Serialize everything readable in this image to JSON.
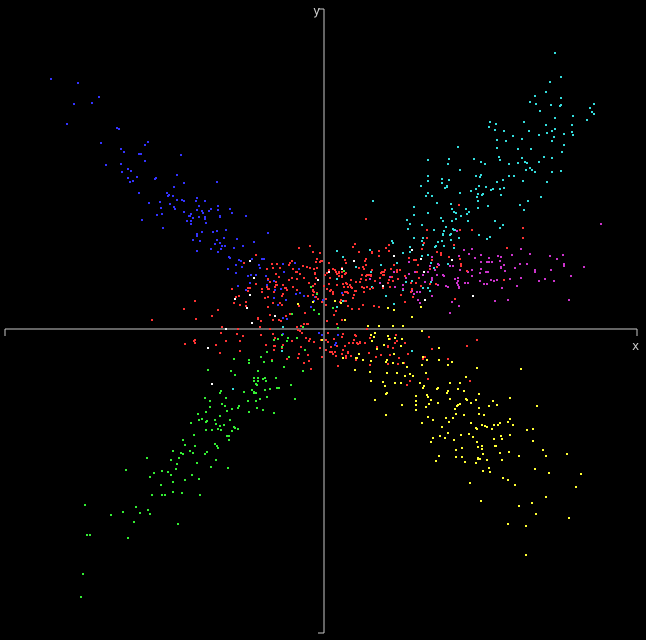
{
  "chart_data": {
    "type": "scatter",
    "title": "",
    "xlabel": "x",
    "ylabel": "y",
    "xlim": [
      -10,
      10
    ],
    "ylim": [
      -10,
      10
    ],
    "grid": false,
    "legend": "none",
    "background": "#000000",
    "axis_color": "#c8c8c8",
    "series": [
      {
        "color": "#3333ff",
        "cluster": {
          "center": [
            -3.6,
            3.2
          ],
          "direction": [
            -1.0,
            0.9
          ],
          "spread_long": 2.6,
          "spread_cross": 0.55,
          "count": 150
        }
      },
      {
        "color": "#33dddd",
        "cluster": {
          "center": [
            4.7,
            3.9
          ],
          "direction": [
            1.0,
            1.0
          ],
          "spread_long": 2.4,
          "spread_cross": 0.7,
          "count": 200
        }
      },
      {
        "color": "#cc33cc",
        "cluster": {
          "center": [
            5.0,
            1.5
          ],
          "direction": [
            1.0,
            0.1
          ],
          "spread_long": 1.6,
          "spread_cross": 0.45,
          "count": 110
        }
      },
      {
        "color": "#ff3333",
        "cluster": {
          "center": [
            0.3,
            1.3
          ],
          "direction": [
            1.0,
            0.2
          ],
          "spread_long": 2.0,
          "spread_cross": 0.55,
          "count": 260
        }
      },
      {
        "color": "#ff3333",
        "cluster": {
          "center": [
            0.4,
            -0.8
          ],
          "direction": [
            1.0,
            -0.1
          ],
          "spread_long": 1.8,
          "spread_cross": 0.4,
          "count": 120
        }
      },
      {
        "color": "#ffff33",
        "cluster": {
          "center": [
            4.4,
            -2.9
          ],
          "direction": [
            1.0,
            -0.8
          ],
          "spread_long": 2.2,
          "spread_cross": 0.8,
          "count": 190
        }
      },
      {
        "color": "#33ee33",
        "cluster": {
          "center": [
            -3.0,
            -3.0
          ],
          "direction": [
            -1.0,
            -1.1
          ],
          "spread_long": 2.4,
          "spread_cross": 0.55,
          "count": 150
        }
      },
      {
        "color": "#ffffff",
        "cluster": {
          "center": [
            -0.8,
            1.0
          ],
          "direction": [
            1.0,
            0.2
          ],
          "spread_long": 2.6,
          "spread_cross": 1.0,
          "count": 22
        }
      }
    ]
  }
}
